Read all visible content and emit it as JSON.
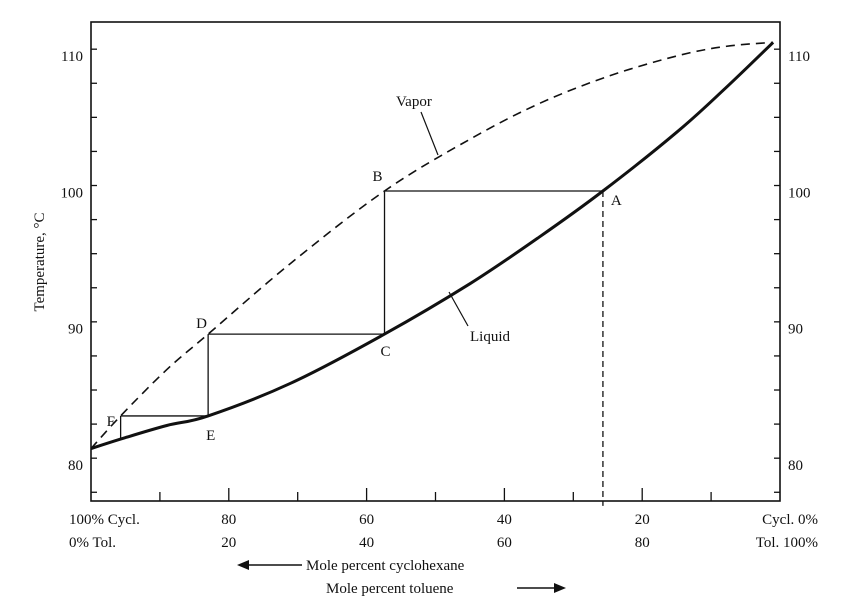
{
  "chart_data": {
    "type": "line",
    "ylabel": "Temperature, °C",
    "ylim": [
      77,
      112
    ],
    "xlim": [
      100,
      0
    ],
    "x_axis_note": "Mole percent cyclohexane (top row); Mole percent toluene = 100 − x (bottom row)",
    "yticks": [
      80,
      90,
      100,
      110
    ],
    "xtick_labels": [
      {
        "x": 100,
        "cycl": "100% Cycl.",
        "tol": "0% Tol."
      },
      {
        "x": 80,
        "cycl": "80",
        "tol": "20"
      },
      {
        "x": 60,
        "cycl": "60",
        "tol": "40"
      },
      {
        "x": 40,
        "cycl": "40",
        "tol": "60"
      },
      {
        "x": 20,
        "cycl": "20",
        "tol": "80"
      },
      {
        "x": 0,
        "cycl": "Cycl.  0%",
        "tol": "Tol. 100%"
      }
    ],
    "series": [
      {
        "name": "Vapor",
        "style": "dashed",
        "x": [
          100,
          95.7,
          89,
          83,
          71,
          57.4,
          45,
          35,
          25,
          15,
          8,
          1
        ],
        "y": [
          81.2,
          83.6,
          87,
          89.6,
          94.8,
          100.1,
          103.9,
          106.5,
          108.5,
          110.0,
          110.7,
          111.0
        ]
      },
      {
        "name": "Liquid",
        "style": "solid",
        "x": [
          100,
          95.7,
          89,
          83,
          71,
          57.4,
          45,
          35,
          25.7,
          15,
          8,
          1
        ],
        "y": [
          81.2,
          81.9,
          82.9,
          83.6,
          86.0,
          89.6,
          93.3,
          96.7,
          100.1,
          104.4,
          107.6,
          111.0
        ]
      }
    ],
    "points": [
      {
        "label": "A",
        "x": 25.7,
        "y": 100.1
      },
      {
        "label": "B",
        "x": 57.4,
        "y": 100.1
      },
      {
        "label": "C",
        "x": 57.4,
        "y": 89.6
      },
      {
        "label": "D",
        "x": 83,
        "y": 89.6
      },
      {
        "label": "E",
        "x": 83,
        "y": 83.6
      },
      {
        "label": "F",
        "x": 95.7,
        "y": 83.6
      }
    ],
    "labels": {
      "arrow_cyclohexane": "Mole percent cyclohexane",
      "arrow_toluene": "Mole percent toluene",
      "vapor": "Vapor",
      "liquid": "Liquid"
    },
    "grid": false,
    "legend": "none"
  }
}
